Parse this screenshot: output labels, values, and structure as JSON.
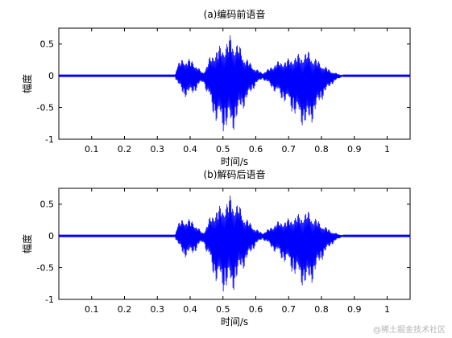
{
  "chart_data": [
    {
      "type": "line",
      "title": "(a)编码前语音",
      "xlabel": "时间/s",
      "ylabel": "幅度",
      "xlim": [
        0,
        1.07
      ],
      "ylim": [
        -1,
        0.75
      ],
      "xticks": [
        "0.1",
        "0.2",
        "0.3",
        "0.4",
        "0.5",
        "0.6",
        "0.7",
        "0.8",
        "0.9",
        "1"
      ],
      "yticks": [
        "-1",
        "-0.5",
        "0",
        "0.5"
      ],
      "series_color": "#0000ff",
      "signal": {
        "silence_until": 0.355,
        "active_until": 0.865,
        "envelope_pos": [
          [
            0.355,
            0.05
          ],
          [
            0.36,
            0.18
          ],
          [
            0.38,
            0.3
          ],
          [
            0.41,
            0.25
          ],
          [
            0.43,
            0.1
          ],
          [
            0.44,
            0.05
          ],
          [
            0.46,
            0.3
          ],
          [
            0.48,
            0.45
          ],
          [
            0.5,
            0.5
          ],
          [
            0.52,
            0.62
          ],
          [
            0.525,
            0.7
          ],
          [
            0.53,
            0.6
          ],
          [
            0.55,
            0.5
          ],
          [
            0.57,
            0.3
          ],
          [
            0.6,
            0.12
          ],
          [
            0.62,
            0.05
          ],
          [
            0.64,
            0.12
          ],
          [
            0.66,
            0.22
          ],
          [
            0.7,
            0.28
          ],
          [
            0.73,
            0.35
          ],
          [
            0.76,
            0.4
          ],
          [
            0.78,
            0.3
          ],
          [
            0.8,
            0.2
          ],
          [
            0.83,
            0.08
          ],
          [
            0.865,
            0.0
          ]
        ],
        "envelope_neg": [
          [
            0.355,
            -0.05
          ],
          [
            0.36,
            -0.1
          ],
          [
            0.38,
            -0.35
          ],
          [
            0.41,
            -0.3
          ],
          [
            0.43,
            -0.15
          ],
          [
            0.44,
            -0.1
          ],
          [
            0.46,
            -0.45
          ],
          [
            0.48,
            -0.78
          ],
          [
            0.5,
            -0.9
          ],
          [
            0.52,
            -0.85
          ],
          [
            0.525,
            -0.98
          ],
          [
            0.53,
            -0.9
          ],
          [
            0.55,
            -0.65
          ],
          [
            0.57,
            -0.45
          ],
          [
            0.6,
            -0.15
          ],
          [
            0.62,
            -0.05
          ],
          [
            0.64,
            -0.15
          ],
          [
            0.66,
            -0.28
          ],
          [
            0.7,
            -0.5
          ],
          [
            0.73,
            -0.75
          ],
          [
            0.76,
            -0.88
          ],
          [
            0.78,
            -0.65
          ],
          [
            0.8,
            -0.4
          ],
          [
            0.83,
            -0.15
          ],
          [
            0.865,
            0.0
          ]
        ]
      }
    },
    {
      "type": "line",
      "title": "(b)解码后语音",
      "xlabel": "时间/s",
      "ylabel": "幅度",
      "xlim": [
        0,
        1.07
      ],
      "ylim": [
        -1,
        0.75
      ],
      "xticks": [
        "0.1",
        "0.2",
        "0.3",
        "0.4",
        "0.5",
        "0.6",
        "0.7",
        "0.8",
        "0.9",
        "1"
      ],
      "yticks": [
        "-1",
        "-0.5",
        "0",
        "0.5"
      ],
      "series_color": "#0000ff",
      "signal": {
        "silence_until": 0.355,
        "active_until": 0.865,
        "envelope_pos": [
          [
            0.355,
            0.05
          ],
          [
            0.36,
            0.18
          ],
          [
            0.38,
            0.3
          ],
          [
            0.41,
            0.25
          ],
          [
            0.43,
            0.1
          ],
          [
            0.44,
            0.05
          ],
          [
            0.46,
            0.3
          ],
          [
            0.48,
            0.45
          ],
          [
            0.5,
            0.5
          ],
          [
            0.52,
            0.62
          ],
          [
            0.525,
            0.7
          ],
          [
            0.53,
            0.6
          ],
          [
            0.55,
            0.5
          ],
          [
            0.57,
            0.3
          ],
          [
            0.6,
            0.12
          ],
          [
            0.62,
            0.05
          ],
          [
            0.64,
            0.12
          ],
          [
            0.66,
            0.22
          ],
          [
            0.7,
            0.28
          ],
          [
            0.73,
            0.35
          ],
          [
            0.76,
            0.4
          ],
          [
            0.78,
            0.3
          ],
          [
            0.8,
            0.2
          ],
          [
            0.83,
            0.08
          ],
          [
            0.865,
            0.0
          ]
        ],
        "envelope_neg": [
          [
            0.355,
            -0.05
          ],
          [
            0.36,
            -0.1
          ],
          [
            0.38,
            -0.35
          ],
          [
            0.41,
            -0.3
          ],
          [
            0.43,
            -0.15
          ],
          [
            0.44,
            -0.1
          ],
          [
            0.46,
            -0.45
          ],
          [
            0.48,
            -0.78
          ],
          [
            0.5,
            -0.9
          ],
          [
            0.52,
            -0.85
          ],
          [
            0.525,
            -0.98
          ],
          [
            0.53,
            -0.9
          ],
          [
            0.55,
            -0.65
          ],
          [
            0.57,
            -0.45
          ],
          [
            0.6,
            -0.15
          ],
          [
            0.62,
            -0.05
          ],
          [
            0.64,
            -0.15
          ],
          [
            0.66,
            -0.28
          ],
          [
            0.7,
            -0.5
          ],
          [
            0.73,
            -0.75
          ],
          [
            0.76,
            -0.88
          ],
          [
            0.78,
            -0.65
          ],
          [
            0.8,
            -0.4
          ],
          [
            0.83,
            -0.15
          ],
          [
            0.865,
            0.0
          ]
        ]
      }
    }
  ],
  "watermark": "@稀土掘金技术社区"
}
